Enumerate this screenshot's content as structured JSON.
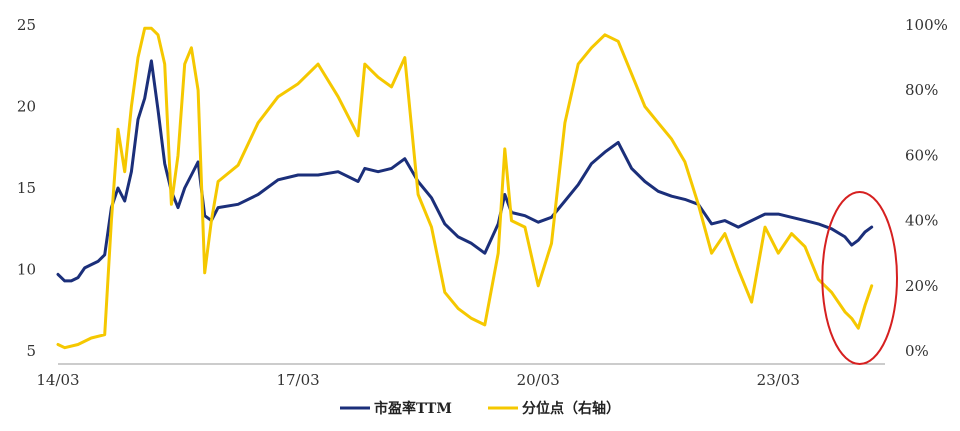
{
  "chart_data": {
    "type": "line",
    "title": "",
    "xlabel": "",
    "ylabel": "",
    "x_ticks": [
      "14/03",
      "17/03",
      "20/03",
      "23/03"
    ],
    "y_left_ticks": [
      "5",
      "10",
      "15",
      "20",
      "25"
    ],
    "y_right_ticks": [
      "0%",
      "20%",
      "40%",
      "60%",
      "80%",
      "100%"
    ],
    "ylim_left": [
      5,
      25
    ],
    "ylim_right": [
      0,
      100
    ],
    "xlim": [
      "2014-03",
      "2024-07"
    ],
    "grid": false,
    "legend_position": "bottom",
    "series": [
      {
        "name": "市盈率TTM",
        "axis": "left",
        "color": "#1b2f7a",
        "points": [
          [
            "2014-03",
            9.7
          ],
          [
            "2014-04",
            9.3
          ],
          [
            "2014-05",
            9.3
          ],
          [
            "2014-06",
            9.5
          ],
          [
            "2014-07",
            10.1
          ],
          [
            "2014-08",
            10.3
          ],
          [
            "2014-09",
            10.5
          ],
          [
            "2014-10",
            10.9
          ],
          [
            "2014-11",
            13.8
          ],
          [
            "2014-12",
            15.0
          ],
          [
            "2015-01",
            14.2
          ],
          [
            "2015-02",
            16.0
          ],
          [
            "2015-03",
            19.2
          ],
          [
            "2015-04",
            20.5
          ],
          [
            "2015-05",
            22.8
          ],
          [
            "2015-06",
            19.8
          ],
          [
            "2015-07",
            16.5
          ],
          [
            "2015-08",
            14.8
          ],
          [
            "2015-09",
            13.8
          ],
          [
            "2015-10",
            15.0
          ],
          [
            "2015-11",
            15.8
          ],
          [
            "2015-12",
            16.6
          ],
          [
            "2016-01",
            13.3
          ],
          [
            "2016-02",
            13.0
          ],
          [
            "2016-03",
            13.8
          ],
          [
            "2016-06",
            14.0
          ],
          [
            "2016-09",
            14.6
          ],
          [
            "2016-12",
            15.5
          ],
          [
            "2017-03",
            15.8
          ],
          [
            "2017-06",
            15.8
          ],
          [
            "2017-09",
            16.0
          ],
          [
            "2017-12",
            15.4
          ],
          [
            "2018-01",
            16.2
          ],
          [
            "2018-03",
            16.0
          ],
          [
            "2018-05",
            16.2
          ],
          [
            "2018-07",
            16.8
          ],
          [
            "2018-09",
            15.4
          ],
          [
            "2018-11",
            14.4
          ],
          [
            "2019-01",
            12.8
          ],
          [
            "2019-03",
            12.0
          ],
          [
            "2019-05",
            11.6
          ],
          [
            "2019-07",
            11.0
          ],
          [
            "2019-09",
            12.8
          ],
          [
            "2019-10",
            14.6
          ],
          [
            "2019-11",
            13.5
          ],
          [
            "2020-01",
            13.3
          ],
          [
            "2020-03",
            12.9
          ],
          [
            "2020-05",
            13.2
          ],
          [
            "2020-07",
            14.2
          ],
          [
            "2020-09",
            15.2
          ],
          [
            "2020-11",
            16.5
          ],
          [
            "2021-01",
            17.2
          ],
          [
            "2021-03",
            17.8
          ],
          [
            "2021-05",
            16.2
          ],
          [
            "2021-07",
            15.4
          ],
          [
            "2021-09",
            14.8
          ],
          [
            "2021-11",
            14.5
          ],
          [
            "2022-01",
            14.3
          ],
          [
            "2022-03",
            14.0
          ],
          [
            "2022-05",
            12.8
          ],
          [
            "2022-07",
            13.0
          ],
          [
            "2022-09",
            12.6
          ],
          [
            "2022-11",
            13.0
          ],
          [
            "2023-01",
            13.4
          ],
          [
            "2023-03",
            13.4
          ],
          [
            "2023-05",
            13.2
          ],
          [
            "2023-07",
            13.0
          ],
          [
            "2023-09",
            12.8
          ],
          [
            "2023-11",
            12.5
          ],
          [
            "2024-01",
            12.0
          ],
          [
            "2024-02",
            11.5
          ],
          [
            "2024-03",
            11.8
          ],
          [
            "2024-04",
            12.3
          ],
          [
            "2024-05",
            12.6
          ]
        ]
      },
      {
        "name": "分位点（右轴）",
        "axis": "right",
        "color": "#f5c800",
        "points": [
          [
            "2014-03",
            2
          ],
          [
            "2014-04",
            1
          ],
          [
            "2014-06",
            2
          ],
          [
            "2014-08",
            4
          ],
          [
            "2014-10",
            5
          ],
          [
            "2014-11",
            40
          ],
          [
            "2014-12",
            68
          ],
          [
            "2015-01",
            55
          ],
          [
            "2015-02",
            75
          ],
          [
            "2015-03",
            90
          ],
          [
            "2015-04",
            99
          ],
          [
            "2015-05",
            99
          ],
          [
            "2015-06",
            97
          ],
          [
            "2015-07",
            88
          ],
          [
            "2015-08",
            45
          ],
          [
            "2015-09",
            60
          ],
          [
            "2015-10",
            88
          ],
          [
            "2015-11",
            93
          ],
          [
            "2015-12",
            80
          ],
          [
            "2016-01",
            24
          ],
          [
            "2016-02",
            40
          ],
          [
            "2016-03",
            52
          ],
          [
            "2016-06",
            57
          ],
          [
            "2016-09",
            70
          ],
          [
            "2016-12",
            78
          ],
          [
            "2017-03",
            82
          ],
          [
            "2017-06",
            88
          ],
          [
            "2017-09",
            78
          ],
          [
            "2017-12",
            66
          ],
          [
            "2018-01",
            88
          ],
          [
            "2018-03",
            84
          ],
          [
            "2018-05",
            81
          ],
          [
            "2018-07",
            90
          ],
          [
            "2018-09",
            48
          ],
          [
            "2018-11",
            38
          ],
          [
            "2019-01",
            18
          ],
          [
            "2019-03",
            13
          ],
          [
            "2019-05",
            10
          ],
          [
            "2019-07",
            8
          ],
          [
            "2019-09",
            30
          ],
          [
            "2019-10",
            62
          ],
          [
            "2019-11",
            40
          ],
          [
            "2020-01",
            38
          ],
          [
            "2020-03",
            20
          ],
          [
            "2020-05",
            33
          ],
          [
            "2020-07",
            70
          ],
          [
            "2020-09",
            88
          ],
          [
            "2020-11",
            93
          ],
          [
            "2021-01",
            97
          ],
          [
            "2021-03",
            95
          ],
          [
            "2021-05",
            85
          ],
          [
            "2021-07",
            75
          ],
          [
            "2021-09",
            70
          ],
          [
            "2021-11",
            65
          ],
          [
            "2022-01",
            58
          ],
          [
            "2022-03",
            45
          ],
          [
            "2022-05",
            30
          ],
          [
            "2022-07",
            36
          ],
          [
            "2022-09",
            25
          ],
          [
            "2022-11",
            15
          ],
          [
            "2023-01",
            38
          ],
          [
            "2023-03",
            30
          ],
          [
            "2023-05",
            36
          ],
          [
            "2023-07",
            32
          ],
          [
            "2023-09",
            22
          ],
          [
            "2023-11",
            18
          ],
          [
            "2024-01",
            12
          ],
          [
            "2024-02",
            10
          ],
          [
            "2024-03",
            7
          ],
          [
            "2024-04",
            14
          ],
          [
            "2024-05",
            20
          ]
        ]
      }
    ],
    "annotations": [
      {
        "type": "ellipse",
        "color": "#d62020",
        "around": [
          "2023-12",
          "2024-07"
        ]
      }
    ]
  }
}
